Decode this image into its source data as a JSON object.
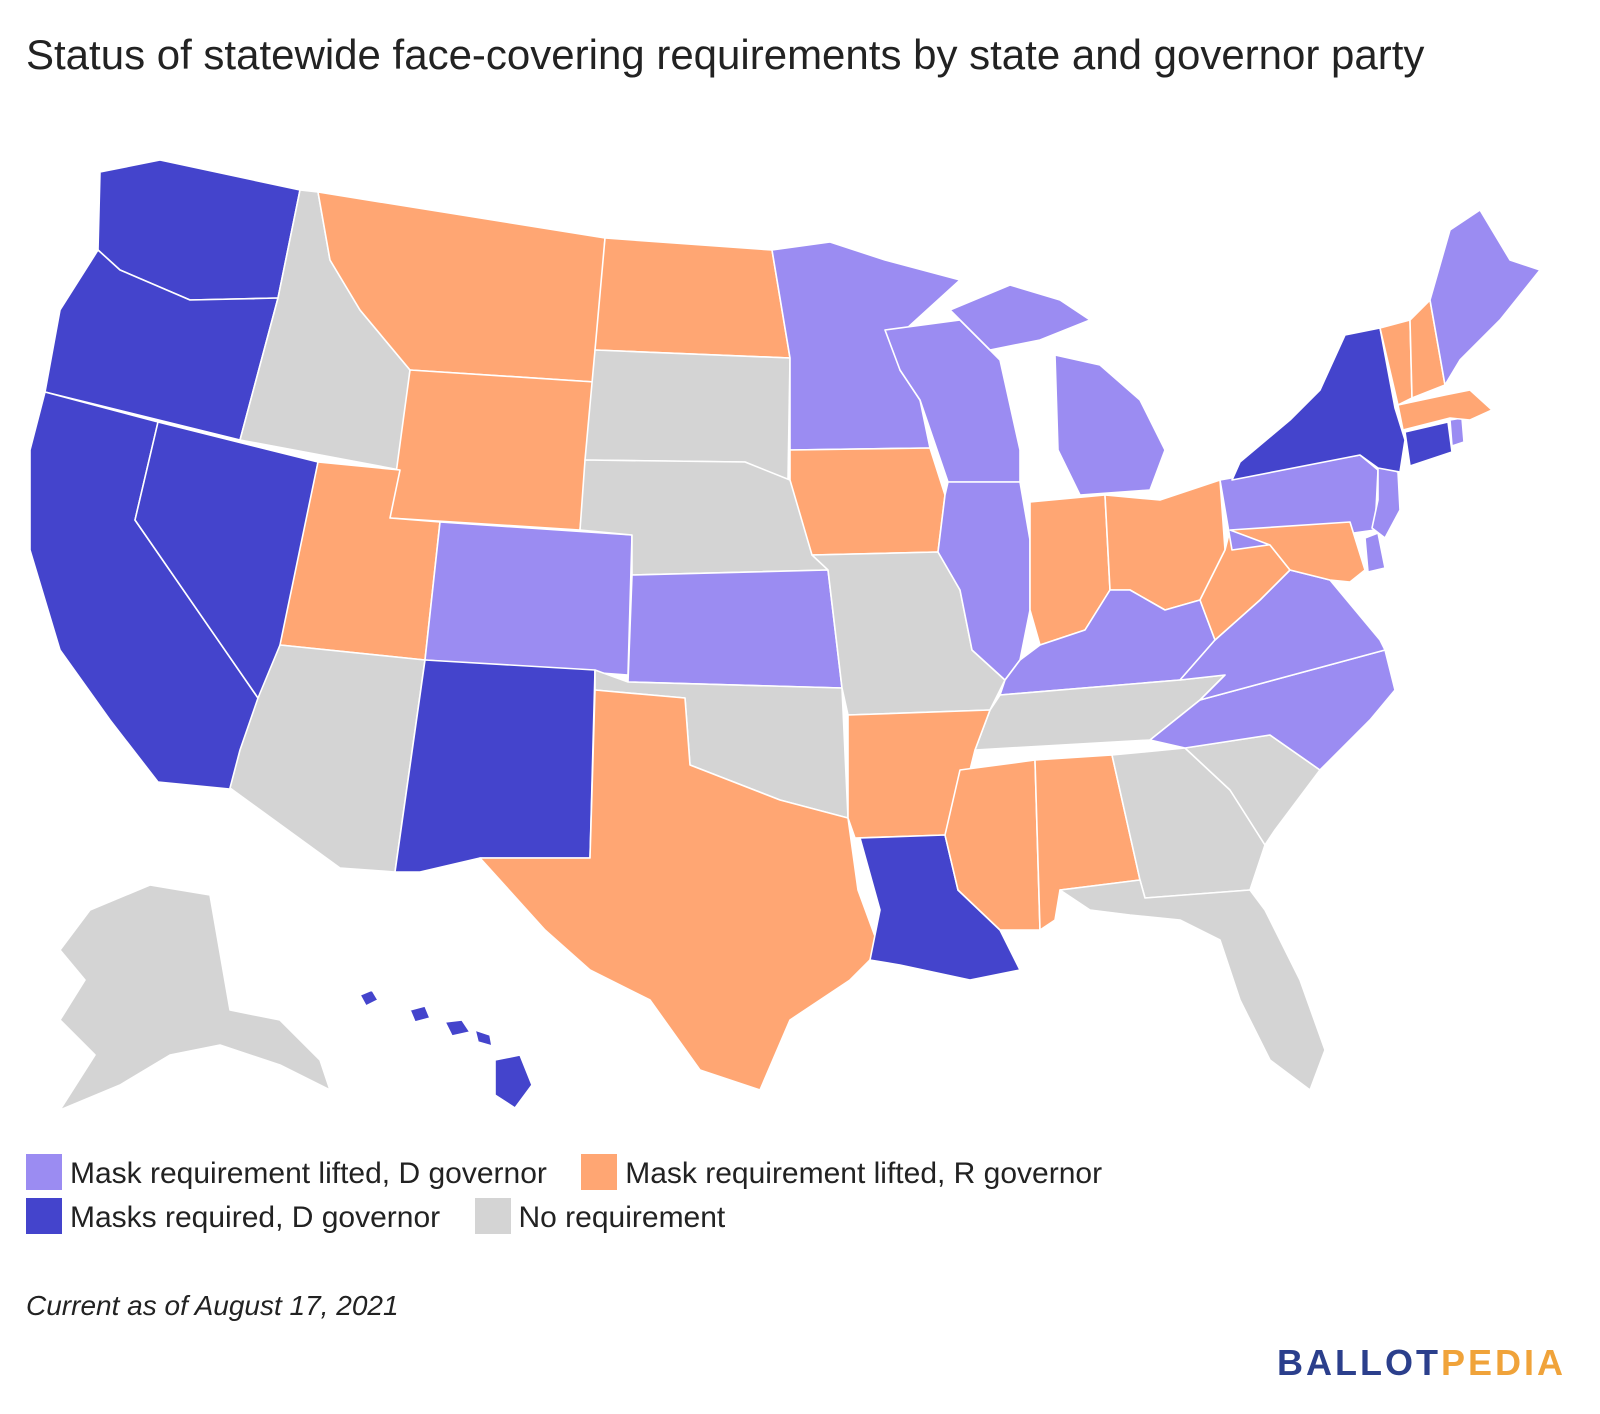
{
  "title": "Status of statewide face-covering requirements by state and governor party",
  "footnote": "Current as of August 17, 2021",
  "brand": {
    "part1": "BALLOT",
    "part2": "PEDIA"
  },
  "legend": [
    {
      "key": "lifted_d",
      "label": "Mask requirement lifted, D governor",
      "color": "#9b8cf2"
    },
    {
      "key": "lifted_r",
      "label": "Mask requirement lifted, R governor",
      "color": "#ffa673"
    },
    {
      "key": "required_d",
      "label": "Masks required, D governor",
      "color": "#4444cc"
    },
    {
      "key": "none",
      "label": "No requirement",
      "color": "#d4d4d4"
    }
  ],
  "chart_data": {
    "type": "choropleth",
    "region": "United States",
    "categories": {
      "lifted_d": "Mask requirement lifted, D governor",
      "lifted_r": "Mask requirement lifted, R governor",
      "required_d": "Masks required, D governor",
      "none": "No requirement"
    },
    "states": {
      "WA": "required_d",
      "OR": "required_d",
      "CA": "required_d",
      "NV": "required_d",
      "NM": "required_d",
      "LA": "required_d",
      "NY": "required_d",
      "CT": "required_d",
      "HI": "required_d",
      "NJ": "lifted_d",
      "MN": "lifted_d",
      "WI": "lifted_d",
      "MI": "lifted_d",
      "IL": "lifted_d",
      "KY": "lifted_d",
      "PA": "lifted_d",
      "DE": "lifted_d",
      "VA": "lifted_d",
      "NC": "lifted_d",
      "CO": "lifted_d",
      "KS": "lifted_d",
      "ME": "lifted_d",
      "RI": "lifted_d",
      "MT": "lifted_r",
      "ND": "lifted_r",
      "WY": "lifted_r",
      "UT": "lifted_r",
      "IA": "lifted_r",
      "IN": "lifted_r",
      "OH": "lifted_r",
      "WV": "lifted_r",
      "MD": "lifted_r",
      "VT": "lifted_r",
      "NH": "lifted_r",
      "MA": "lifted_r",
      "TX": "lifted_r",
      "AR": "lifted_r",
      "MS": "lifted_r",
      "AL": "lifted_r",
      "ID": "none",
      "SD": "none",
      "NE": "none",
      "MO": "none",
      "OK": "none",
      "AZ": "none",
      "TN": "none",
      "GA": "none",
      "SC": "none",
      "FL": "none",
      "AK": "none"
    }
  }
}
